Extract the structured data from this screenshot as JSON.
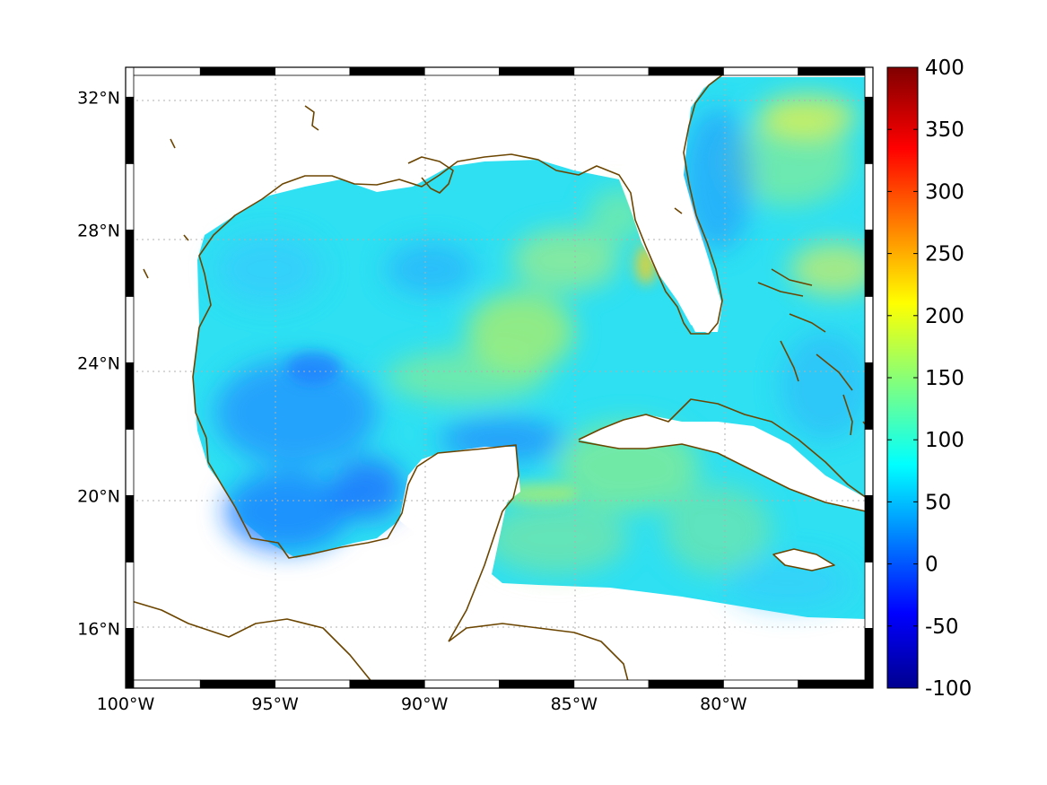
{
  "map": {
    "lat_labels": [
      "32°N",
      "28°N",
      "24°N",
      "20°N",
      "16°N"
    ],
    "lon_labels": [
      "100°W",
      "95°W",
      "90°W",
      "85°W",
      "80°W"
    ],
    "lat_range": [
      14.2,
      32.9
    ],
    "lon_range": [
      -100,
      -75
    ],
    "grid": true,
    "coastline_color": "#6b4500",
    "land_color": "#ffffff"
  },
  "colorbar": {
    "ticks": [
      "400",
      "350",
      "300",
      "250",
      "200",
      "150",
      "100",
      "50",
      "0",
      "-50",
      "-100"
    ],
    "range": [
      -100,
      400
    ],
    "colormap": "jet"
  }
}
